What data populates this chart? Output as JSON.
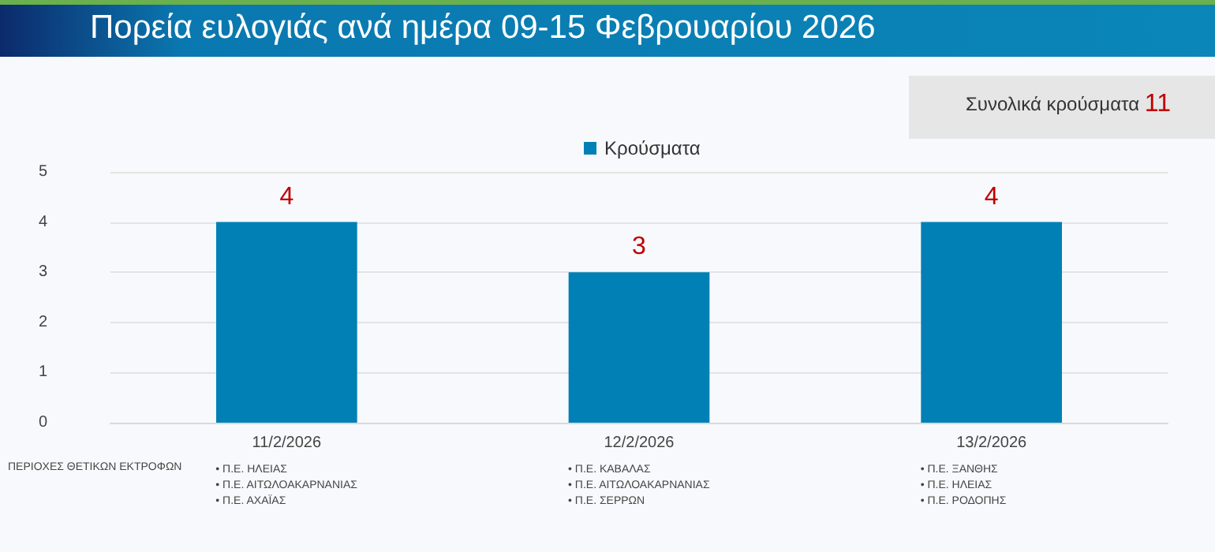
{
  "chart_data": {
    "type": "bar",
    "title": "Πορεία ευλογιάς ανά ημέρα 09-15 Φεβρουαρίου 2026",
    "categories": [
      "11/2/2026",
      "12/2/2026",
      "13/2/2026"
    ],
    "series": [
      {
        "name": "Κρούσματα",
        "color": "#0080b4",
        "values": [
          4,
          3,
          4
        ]
      }
    ],
    "ylim": [
      0,
      5
    ],
    "yticks": [
      0,
      1,
      2,
      3,
      4,
      5
    ],
    "grid": "y",
    "legend": "top",
    "data_labels": true,
    "annotations": [
      "Συνολικά κρούσματα 11",
      "ΠΕΡΙΟΧΕΣ ΘΕΤΙΚΩΝ ΕΚΤΡΟΦΩΝ",
      "• Π.Ε. ΗΛΕΙΑΣ\n• Π.Ε. ΑΙΤΩΛΟΑΚΑΡΝΑΝΙΑΣ\n• Π.Ε. ΑΧΑΪΑΣ",
      "• Π.Ε. ΚΑΒΑΛΑΣ\n• Π.Ε. ΑΙΤΩΛΟΑΚΑΡΝΑΝΙΑΣ\n• Π.Ε. ΣΕΡΡΩΝ",
      "• Π.Ε. ΞΑΝΘΗΣ\n• Π.Ε. ΗΛΕΙΑΣ\n• Π.Ε. ΡΟΔΟΠΗΣ"
    ]
  }
}
